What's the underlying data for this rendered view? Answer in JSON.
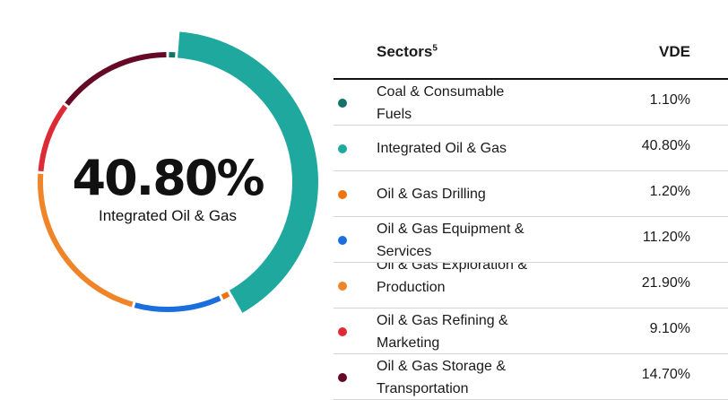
{
  "summary": {
    "value": "40.80%",
    "label": "Integrated Oil & Gas"
  },
  "table": {
    "col_sectors": "Sectors",
    "col_sectors_footnote": "5",
    "col_fund": "VDE"
  },
  "chart_data": {
    "type": "pie",
    "categories": [
      "Coal & Consumable Fuels",
      "Integrated Oil & Gas",
      "Oil & Gas Drilling",
      "Oil & Gas Equipment & Services",
      "Oil & Gas Exploration & Production",
      "Oil & Gas Refining & Marketing",
      "Oil & Gas Storage & Transportation"
    ],
    "values": [
      1.1,
      40.8,
      1.2,
      11.2,
      21.9,
      9.1,
      14.7
    ],
    "colors": [
      "#127468",
      "#1fa89e",
      "#ee7410",
      "#1a6fdc",
      "#f08428",
      "#dd2b36",
      "#650a26"
    ],
    "highlighted": "Integrated Oil & Gas"
  },
  "rows": [
    {
      "name": "Coal & Consumable Fuels",
      "value": "1.10%",
      "color": "#127468"
    },
    {
      "name": "Integrated Oil & Gas",
      "value": "40.80%",
      "color": "#1fa89e"
    },
    {
      "name": "Oil & Gas Drilling",
      "value": "1.20%",
      "color": "#ee7410"
    },
    {
      "name": "Oil & Gas Equipment & Services",
      "value": "11.20%",
      "color": "#1a6fdc"
    },
    {
      "name": "Oil & Gas Exploration & Production",
      "value": "21.90%",
      "color": "#f08428"
    },
    {
      "name": "Oil & Gas Refining & Marketing",
      "value": "9.10%",
      "color": "#dd2b36"
    },
    {
      "name": "Oil & Gas Storage & Transportation",
      "value": "14.70%",
      "color": "#650a26"
    }
  ]
}
